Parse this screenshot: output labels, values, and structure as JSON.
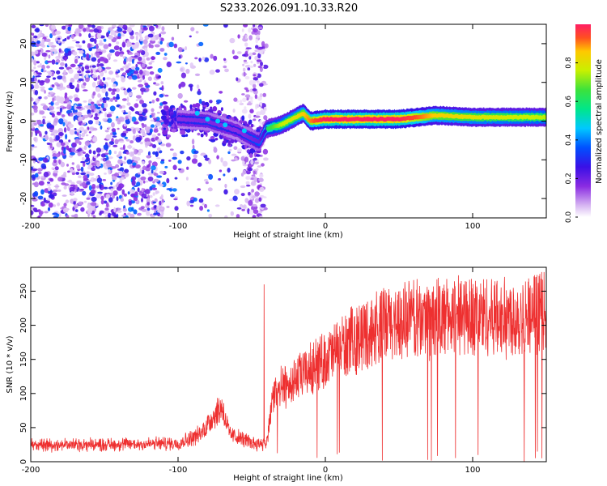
{
  "title": "S233.2026.091.10.33.R20",
  "chart_data": [
    {
      "type": "heatmap",
      "name": "spectrogram",
      "xlabel": "Height of straight line (km)",
      "ylabel": "Frequency (Hz)",
      "xlim": [
        -200,
        150
      ],
      "ylim": [
        -25,
        25
      ],
      "xticks": [
        -200,
        -100,
        0,
        100
      ],
      "yticks": [
        -20,
        -10,
        0,
        10,
        20
      ],
      "colorbar": {
        "label": "Normalized spectral amplitude",
        "range": [
          0,
          1
        ],
        "ticks": [
          0.0,
          0.2,
          0.4,
          0.6,
          0.8
        ],
        "tick_labels": [
          "0.0",
          "0.2",
          "0.4",
          "0.6",
          "0.8"
        ]
      },
      "ridge": {
        "description": "dominant frequency trace",
        "x": [
          -100,
          -80,
          -60,
          -45,
          -40,
          -30,
          -20,
          -15,
          -10,
          0,
          20,
          50,
          75,
          100,
          150
        ],
        "freq": [
          0.5,
          0,
          -2.5,
          -5.5,
          -2,
          -1,
          1,
          2,
          0,
          0.5,
          0.5,
          0.5,
          1.5,
          1,
          1
        ],
        "amplitude": [
          0.35,
          0.4,
          0.35,
          0.45,
          0.6,
          0.75,
          0.8,
          0.85,
          0.9,
          1.0,
          1.0,
          1.0,
          0.85,
          0.8,
          0.75
        ]
      }
    },
    {
      "type": "line",
      "name": "snr",
      "xlabel": "Height of straight line (km)",
      "ylabel": "SNR (10 * v/v)",
      "xlim": [
        -200,
        150
      ],
      "ylim": [
        0,
        285
      ],
      "xticks": [
        -200,
        -100,
        0,
        100
      ],
      "yticks": [
        0,
        50,
        100,
        150,
        200,
        250
      ],
      "color": "#ee3030",
      "envelope": {
        "x": [
          -200,
          -150,
          -100,
          -85,
          -75,
          -70,
          -65,
          -50,
          -40,
          -35,
          -20,
          0,
          10,
          20,
          40,
          60,
          80,
          100,
          120,
          150
        ],
        "mean": [
          25,
          25,
          27,
          40,
          70,
          80,
          40,
          28,
          25,
          100,
          120,
          150,
          165,
          180,
          200,
          210,
          210,
          215,
          210,
          220
        ]
      }
    }
  ]
}
